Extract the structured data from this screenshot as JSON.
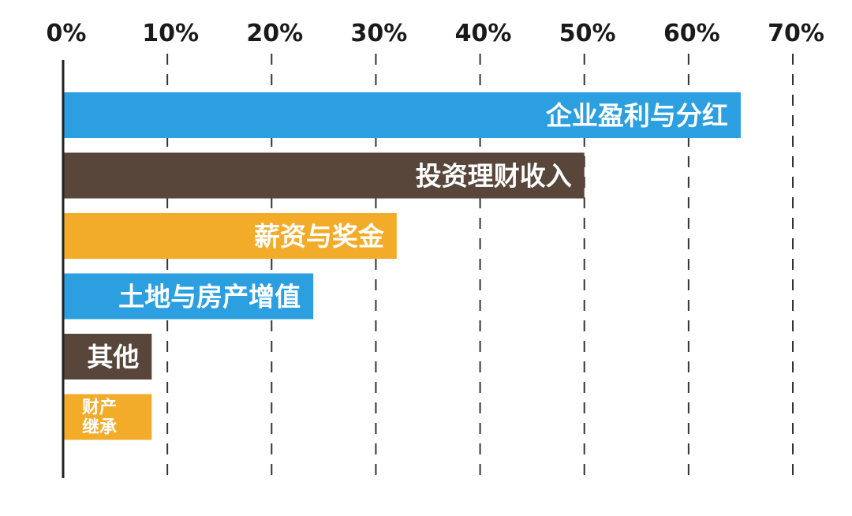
{
  "chart_data": {
    "type": "bar",
    "orientation": "horizontal",
    "categories": [
      "企业盈利与分红",
      "投资理财收入",
      "薪资与奖金",
      "土地与房产增值",
      "其他",
      "财产继承"
    ],
    "category_lines": [
      [
        "企业盈利与分红"
      ],
      [
        "投资理财收入"
      ],
      [
        "薪资与奖金"
      ],
      [
        "土地与房产增值"
      ],
      [
        "其他"
      ],
      [
        "财产",
        "继承"
      ]
    ],
    "values": [
      65,
      50,
      32,
      24,
      8.5,
      8.5
    ],
    "colors": [
      "#2b9fe0",
      "#574639",
      "#f2ac2a",
      "#2b9fe0",
      "#574639",
      "#f2ac2a"
    ],
    "x_ticks": [
      "0%",
      "10%",
      "20%",
      "30%",
      "40%",
      "50%",
      "60%",
      "70%"
    ],
    "xlim": [
      0,
      70
    ],
    "grid": true,
    "title": "",
    "xlabel": "",
    "ylabel": ""
  }
}
